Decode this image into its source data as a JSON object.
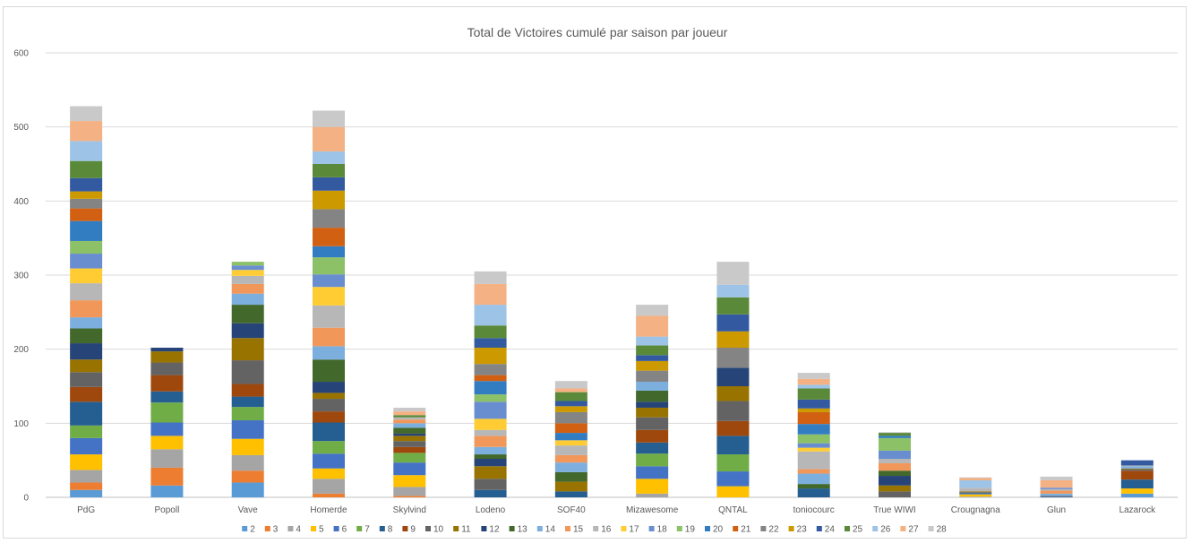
{
  "chart_data": {
    "type": "bar",
    "stacked": true,
    "title": "Total de Victoires cumulé par saison par joueur",
    "xlabel": "",
    "ylabel": "",
    "ylim": [
      0,
      600
    ],
    "yticks": [
      0,
      100,
      200,
      300,
      400,
      500,
      600
    ],
    "grid": true,
    "legend_position": "bottom",
    "categories": [
      "PdG",
      "Popoll",
      "Vave",
      "Homerde",
      "Skylvind",
      "Lodeno",
      "SOF40",
      "Mizawesome",
      "QNTAL",
      "toniocourc",
      "True WIWI",
      "Crougnagna",
      "Glun",
      "Lazarock"
    ],
    "series": [
      {
        "name": "2",
        "color": "#5b9bd5",
        "values": [
          10,
          16,
          20,
          0,
          0,
          0,
          0,
          0,
          0,
          0,
          0,
          0,
          0,
          5
        ]
      },
      {
        "name": "3",
        "color": "#ed7d31",
        "values": [
          10,
          24,
          16,
          5,
          2,
          0,
          0,
          0,
          0,
          0,
          0,
          0,
          0,
          0
        ]
      },
      {
        "name": "4",
        "color": "#a5a5a5",
        "values": [
          17,
          25,
          21,
          20,
          12,
          0,
          0,
          5,
          0,
          0,
          0,
          1,
          0,
          0
        ]
      },
      {
        "name": "5",
        "color": "#ffc000",
        "values": [
          21,
          18,
          22,
          14,
          16,
          0,
          0,
          20,
          15,
          0,
          0,
          3,
          0,
          7
        ]
      },
      {
        "name": "6",
        "color": "#4472c4",
        "values": [
          22,
          18,
          25,
          20,
          17,
          0,
          0,
          17,
          20,
          0,
          0,
          1,
          0,
          0
        ]
      },
      {
        "name": "7",
        "color": "#70ad47",
        "values": [
          17,
          27,
          18,
          17,
          13,
          0,
          0,
          17,
          23,
          0,
          0,
          0,
          0,
          0
        ]
      },
      {
        "name": "8",
        "color": "#255e91",
        "values": [
          32,
          15,
          14,
          25,
          0,
          10,
          8,
          15,
          25,
          12,
          0,
          1,
          1,
          12
        ]
      },
      {
        "name": "9",
        "color": "#9e480e",
        "values": [
          20,
          22,
          17,
          15,
          8,
          0,
          0,
          17,
          20,
          0,
          0,
          0,
          0,
          12
        ]
      },
      {
        "name": "10",
        "color": "#636363",
        "values": [
          20,
          17,
          32,
          17,
          8,
          15,
          0,
          17,
          27,
          0,
          8,
          1,
          1,
          2
        ]
      },
      {
        "name": "11",
        "color": "#997300",
        "values": [
          17,
          15,
          30,
          8,
          7,
          17,
          13,
          13,
          20,
          0,
          8,
          1,
          0,
          1
        ]
      },
      {
        "name": "12",
        "color": "#264478",
        "values": [
          22,
          5,
          20,
          15,
          3,
          10,
          0,
          8,
          25,
          0,
          13,
          0,
          0,
          0
        ]
      },
      {
        "name": "13",
        "color": "#43682b",
        "values": [
          20,
          0,
          25,
          30,
          8,
          6,
          13,
          15,
          0,
          6,
          7,
          0,
          0,
          0
        ]
      },
      {
        "name": "14",
        "color": "#7cafdd",
        "values": [
          15,
          0,
          15,
          18,
          6,
          10,
          13,
          12,
          0,
          14,
          0,
          0,
          3,
          3
        ]
      },
      {
        "name": "15",
        "color": "#f1975a",
        "values": [
          23,
          0,
          13,
          25,
          5,
          15,
          10,
          0,
          0,
          6,
          10,
          0,
          4,
          0
        ]
      },
      {
        "name": "16",
        "color": "#b7b7b7",
        "values": [
          23,
          0,
          11,
          30,
          3,
          8,
          13,
          0,
          0,
          24,
          6,
          5,
          2,
          1
        ]
      },
      {
        "name": "17",
        "color": "#ffcd33",
        "values": [
          20,
          0,
          8,
          25,
          0,
          15,
          7,
          0,
          0,
          5,
          0,
          0,
          0,
          0
        ]
      },
      {
        "name": "18",
        "color": "#698ed0",
        "values": [
          20,
          0,
          6,
          17,
          0,
          23,
          0,
          0,
          0,
          6,
          11,
          0,
          2,
          0
        ]
      },
      {
        "name": "19",
        "color": "#8cc168",
        "values": [
          17,
          0,
          5,
          23,
          0,
          10,
          0,
          0,
          0,
          12,
          17,
          0,
          0,
          0
        ]
      },
      {
        "name": "20",
        "color": "#327dc2",
        "values": [
          27,
          0,
          0,
          15,
          0,
          18,
          10,
          0,
          0,
          14,
          3,
          0,
          0,
          0
        ]
      },
      {
        "name": "21",
        "color": "#d26012",
        "values": [
          17,
          0,
          0,
          25,
          0,
          8,
          13,
          0,
          0,
          16,
          0,
          0,
          0,
          0
        ]
      },
      {
        "name": "22",
        "color": "#848484",
        "values": [
          13,
          0,
          0,
          25,
          0,
          15,
          15,
          15,
          27,
          0,
          0,
          0,
          0,
          0
        ]
      },
      {
        "name": "23",
        "color": "#cc9a00",
        "values": [
          10,
          0,
          0,
          25,
          0,
          22,
          8,
          13,
          22,
          5,
          0,
          0,
          0,
          0
        ]
      },
      {
        "name": "24",
        "color": "#335aa1",
        "values": [
          18,
          0,
          0,
          18,
          0,
          13,
          7,
          8,
          23,
          12,
          0,
          0,
          0,
          7
        ]
      },
      {
        "name": "25",
        "color": "#5a8a39",
        "values": [
          23,
          0,
          0,
          18,
          3,
          17,
          12,
          13,
          23,
          15,
          4,
          0,
          0,
          0
        ]
      },
      {
        "name": "26",
        "color": "#9dc3e6",
        "values": [
          27,
          0,
          0,
          17,
          0,
          28,
          0,
          12,
          17,
          5,
          0,
          10,
          0,
          0
        ]
      },
      {
        "name": "27",
        "color": "#f4b183",
        "values": [
          27,
          0,
          0,
          33,
          5,
          28,
          5,
          28,
          0,
          8,
          0,
          3,
          10,
          0
        ]
      },
      {
        "name": "28",
        "color": "#c9c9c9",
        "values": [
          20,
          0,
          0,
          22,
          5,
          17,
          10,
          15,
          31,
          8,
          1,
          1,
          5,
          0
        ]
      }
    ]
  }
}
